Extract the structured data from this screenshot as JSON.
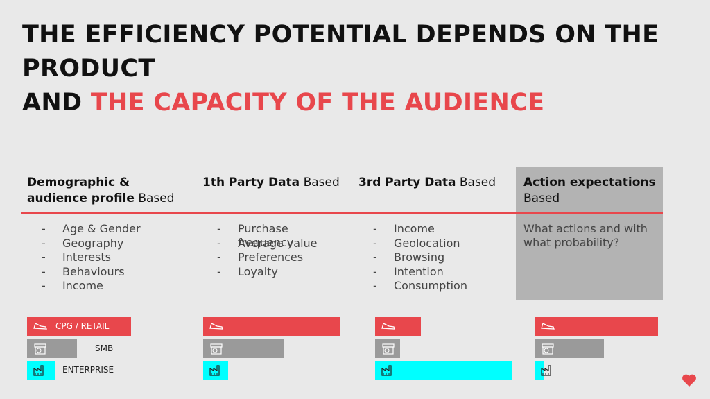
{
  "title": {
    "line1": "THE EFFICIENCY POTENTIAL DEPENDS ON THE PRODUCT",
    "line2_black": "AND",
    "line2_red": "THE CAPACITY OF THE AUDIENCE"
  },
  "columns": [
    {
      "heading_bold": "Demographic & audience profile",
      "heading_rest": "Based",
      "items": [
        "Age & Gender",
        "Geography",
        "Interests",
        "Behaviours",
        "Income"
      ]
    },
    {
      "heading_bold": "1th Party Data",
      "heading_rest": "Based",
      "items": [
        "Purchase frequency",
        "Average value",
        "Preferences",
        "Loyalty"
      ]
    },
    {
      "heading_bold": "3rd Party Data",
      "heading_rest": "Based",
      "items": [
        "Income",
        "Geolocation",
        "Browsing",
        "Intention",
        "Consumption"
      ]
    },
    {
      "heading_bold": "Action expectations",
      "heading_rest": "Based",
      "description": "What actions and with what probability?"
    }
  ],
  "segments": [
    {
      "name": "CPG / RETAIL",
      "color": "#e8474c"
    },
    {
      "name": "SMB",
      "color": "#9a9a9a"
    },
    {
      "name": "ENTERPRISE",
      "color": "#00ffff"
    }
  ],
  "xlim": [
    0,
    100
  ],
  "bars": [
    [
      75,
      36,
      20
    ],
    [
      99,
      58,
      18
    ],
    [
      33,
      18,
      99
    ],
    [
      89,
      50,
      7
    ]
  ]
}
